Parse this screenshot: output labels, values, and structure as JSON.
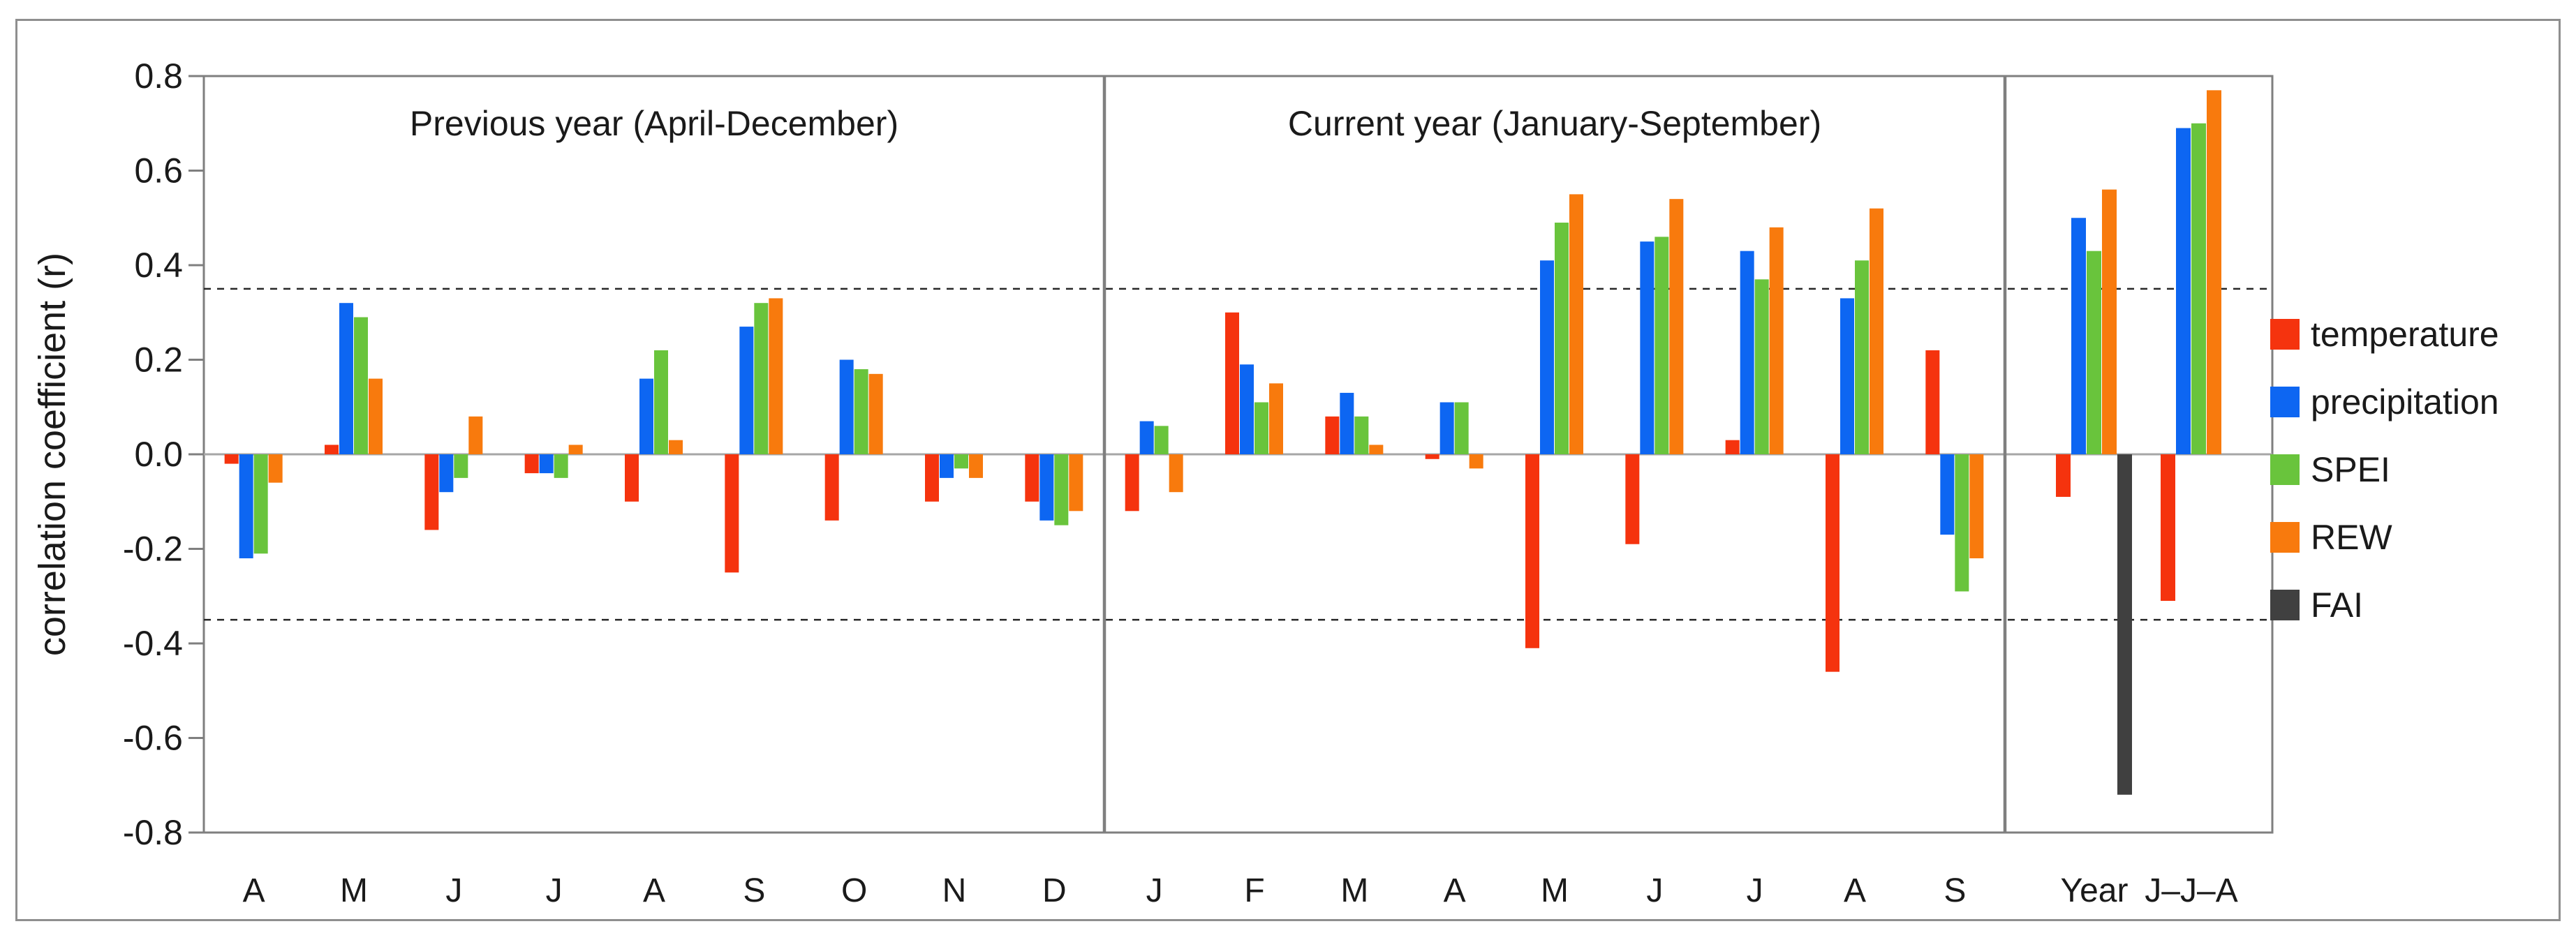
{
  "figure": {
    "y_axis_title": "correlation coefficient (r)"
  },
  "chart_data": {
    "type": "bar",
    "ylabel": "correlation coefficient (r)",
    "ylim": [
      -0.8,
      0.8
    ],
    "ytick_step": 0.2,
    "ytick_labels": [
      "0.8",
      "0.6",
      "0.4",
      "0.2",
      "0.0",
      "-0.2",
      "-0.4",
      "-0.6",
      "-0.8"
    ],
    "significance_level": 0.35,
    "significance_lines": [
      0.35,
      -0.35
    ],
    "grid": "off",
    "legend_position": "right",
    "sections": [
      {
        "id": "prev",
        "title": "Previous year (April-December)",
        "categories": [
          "A",
          "M",
          "J",
          "J",
          "A",
          "S",
          "O",
          "N",
          "D"
        ]
      },
      {
        "id": "cur",
        "title": "Current year (January-September)",
        "categories": [
          "J",
          "F",
          "M",
          "A",
          "M",
          "J",
          "J",
          "A",
          "S"
        ]
      },
      {
        "id": "summary",
        "title": "",
        "categories": [
          "Year",
          "J–J–A"
        ]
      }
    ],
    "series": [
      {
        "name": "temperature",
        "color": "#f5330e",
        "values": {
          "prev": [
            -0.02,
            0.02,
            -0.16,
            -0.04,
            -0.1,
            -0.25,
            -0.14,
            -0.1,
            -0.1
          ],
          "cur": [
            -0.12,
            0.3,
            0.08,
            -0.01,
            -0.41,
            -0.19,
            0.03,
            -0.46,
            0.22
          ],
          "summary": [
            -0.09,
            -0.31
          ]
        }
      },
      {
        "name": "precipitation",
        "color": "#0d66f2",
        "values": {
          "prev": [
            -0.22,
            0.32,
            -0.08,
            -0.04,
            0.16,
            0.27,
            0.2,
            -0.05,
            -0.14
          ],
          "cur": [
            0.07,
            0.19,
            0.13,
            0.11,
            0.41,
            0.45,
            0.43,
            0.33,
            -0.17
          ],
          "summary": [
            0.5,
            0.69
          ]
        }
      },
      {
        "name": "SPEI",
        "color": "#69c43c",
        "values": {
          "prev": [
            -0.21,
            0.29,
            -0.05,
            -0.05,
            0.22,
            0.32,
            0.18,
            -0.03,
            -0.15
          ],
          "cur": [
            0.06,
            0.11,
            0.08,
            0.11,
            0.49,
            0.46,
            0.37,
            0.41,
            -0.29
          ],
          "summary": [
            0.43,
            0.7
          ]
        }
      },
      {
        "name": "REW",
        "color": "#f87a0d",
        "values": {
          "prev": [
            -0.06,
            0.16,
            0.08,
            0.02,
            0.03,
            0.33,
            0.17,
            -0.05,
            -0.12
          ],
          "cur": [
            -0.08,
            0.15,
            0.02,
            -0.03,
            0.55,
            0.54,
            0.48,
            0.52,
            -0.22
          ],
          "summary": [
            0.56,
            0.77
          ]
        }
      },
      {
        "name": "FAI",
        "color": "#404040",
        "values": {
          "prev": [
            null,
            null,
            null,
            null,
            null,
            null,
            null,
            null,
            null
          ],
          "cur": [
            null,
            null,
            null,
            null,
            null,
            null,
            null,
            null,
            null
          ],
          "summary": [
            -0.72,
            null
          ]
        }
      }
    ]
  }
}
